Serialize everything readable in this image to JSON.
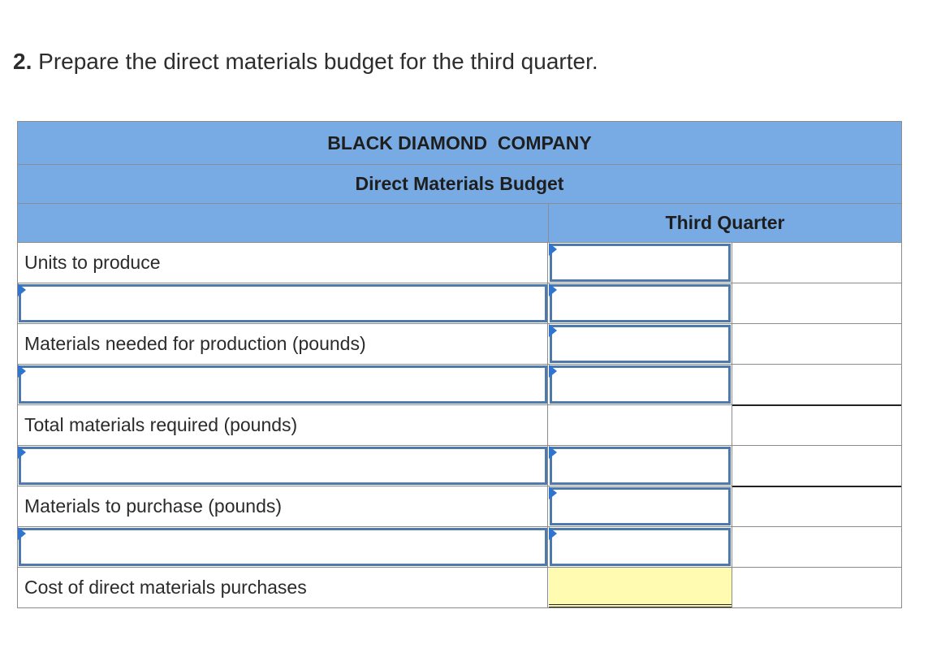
{
  "question": {
    "number": "2.",
    "text": "Prepare the direct materials budget for the third quarter."
  },
  "budget": {
    "company": "BLACK DIAMOND  COMPANY",
    "title": "Direct Materials Budget",
    "column_header": "Third Quarter",
    "rows": [
      {
        "label": "Units to produce",
        "label_editable": false,
        "value_editable": true,
        "value": ""
      },
      {
        "label": "",
        "label_editable": true,
        "value_editable": true,
        "value": ""
      },
      {
        "label": "Materials needed for production (pounds)",
        "label_editable": false,
        "value_editable": true,
        "value": ""
      },
      {
        "label": "",
        "label_editable": true,
        "value_editable": true,
        "value": ""
      },
      {
        "label": "Total materials required (pounds)",
        "label_editable": false,
        "value_editable": false,
        "value": ""
      },
      {
        "label": "",
        "label_editable": true,
        "value_editable": true,
        "value": ""
      },
      {
        "label": "Materials to purchase (pounds)",
        "label_editable": false,
        "value_editable": true,
        "value": ""
      },
      {
        "label": "",
        "label_editable": true,
        "value_editable": true,
        "value": ""
      },
      {
        "label": "Cost of direct materials purchases",
        "label_editable": false,
        "value_editable": false,
        "value": "",
        "value_highlight": "#fffbb0"
      }
    ]
  },
  "colors": {
    "header_blue": "#78abe4",
    "input_border": "#4e79ad",
    "marker": "#2f74cf",
    "answer_highlight": "#fffbb0"
  }
}
